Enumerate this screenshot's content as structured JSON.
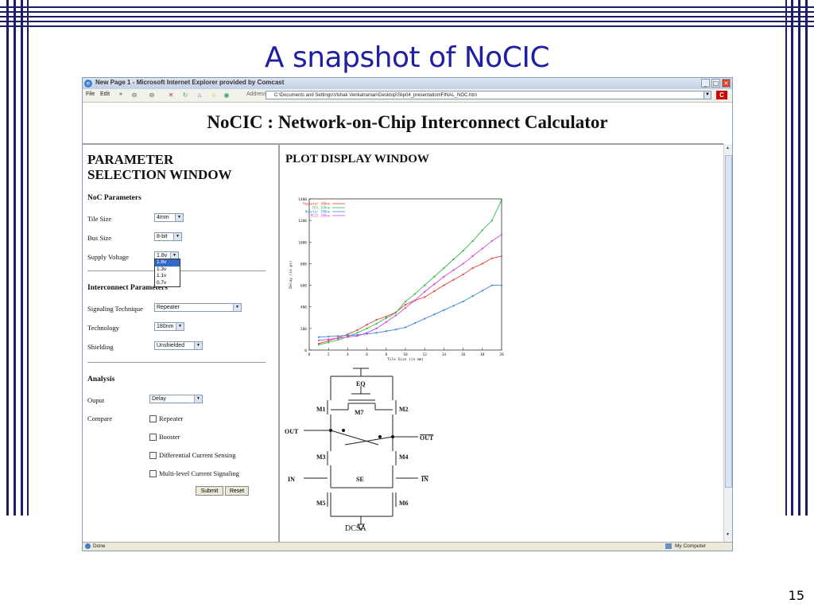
{
  "slide": {
    "title": "A snapshot of NoCIC",
    "page_number": "15"
  },
  "browser": {
    "window_title": "New Page 1 - Microsoft Internet Explorer provided by Comcast",
    "menu": {
      "file": "File",
      "edit": "Edit",
      "more": "»"
    },
    "address_label": "Address",
    "address": "C:\\Documents and Settings\\Vishak Venkatraman\\Desktop\\Slip04_presentation\\FINAL_NOC.htm",
    "go": "C",
    "status_left": "Done",
    "status_right": "My Computer"
  },
  "app": {
    "title": "NoCIC : Network-on-Chip Interconnect Calculator",
    "param_window_title_1": "PARAMETER",
    "param_window_title_2": "SELECTION WINDOW",
    "plot_window_title": "PLOT DISPLAY WINDOW",
    "noc_params": {
      "heading": "NoC Parameters",
      "tile_size_label": "Tile Size",
      "tile_size_value": "4mm",
      "bus_size_label": "Bus Size",
      "bus_size_value": "8-bit",
      "supply_voltage_label": "Supply Voltage",
      "supply_voltage_value": "1.8v",
      "supply_voltage_options": [
        "1.8v",
        "1.3v",
        "1.1v",
        "0.7v"
      ]
    },
    "interconnect_params": {
      "heading": "Interconnect Parameters",
      "signaling_label": "Signaling Technique",
      "signaling_value": "Repeater",
      "technology_label": "Technology",
      "technology_value": "180nm",
      "shielding_label": "Shielding",
      "shielding_value": "Unshielded"
    },
    "analysis": {
      "heading": "Analysis",
      "output_label": "Ouput",
      "output_value": "Delay",
      "compare_label": "Compare",
      "options": [
        "Repeater",
        "Booster",
        "Differential Current Sensing",
        "Multi-level Current Signaling"
      ],
      "submit": "Submit",
      "reset": "Reset"
    },
    "circuit": {
      "labels": {
        "eq": "EQ",
        "m1": "M1",
        "m2": "M2",
        "m7": "M7",
        "out": "OUT",
        "outb": "OUT",
        "m3": "M3",
        "m4": "M4",
        "in": "IN",
        "inb": "IN",
        "se": "SE",
        "m5": "M5",
        "m6": "M6"
      },
      "caption": "DCSA"
    }
  },
  "chart_data": {
    "type": "line",
    "xlabel": "Tile Size (in mm)",
    "ylabel": "Delay (in ps)",
    "xlim": [
      0,
      20
    ],
    "ylim": [
      0,
      1400
    ],
    "xticks": [
      "0",
      "2",
      "4",
      "6",
      "8",
      "10",
      "12",
      "14",
      "16",
      "18",
      "20"
    ],
    "yticks": [
      "0",
      "200",
      "400",
      "600",
      "800",
      "1000",
      "1200",
      "1400"
    ],
    "grid": false,
    "legend_position": "top-left",
    "x": [
      1,
      2,
      3,
      4,
      5,
      6,
      7,
      8,
      9,
      10,
      11,
      12,
      13,
      14,
      15,
      16,
      17,
      18,
      19,
      20
    ],
    "series": [
      {
        "name": "Repeater 180nm",
        "color": "#e0443c",
        "values": [
          60,
          85,
          115,
          145,
          185,
          235,
          280,
          310,
          350,
          420,
          460,
          490,
          545,
          600,
          650,
          700,
          760,
          800,
          850,
          870
        ]
      },
      {
        "name": "DCS 180nm",
        "color": "#33bb44",
        "values": [
          50,
          70,
          95,
          125,
          160,
          200,
          245,
          295,
          345,
          450,
          520,
          600,
          680,
          760,
          840,
          920,
          1010,
          1110,
          1200,
          1390
        ]
      },
      {
        "name": "Booster 180nm",
        "color": "#3a88dd",
        "values": [
          120,
          125,
          130,
          135,
          140,
          150,
          160,
          175,
          190,
          210,
          250,
          290,
          330,
          370,
          410,
          450,
          500,
          550,
          600,
          600
        ]
      },
      {
        "name": "MLCS 180nm",
        "color": "#d545d5",
        "values": [
          90,
          100,
          110,
          120,
          130,
          160,
          200,
          260,
          320,
          390,
          460,
          540,
          610,
          680,
          740,
          800,
          870,
          940,
          1010,
          1070
        ]
      }
    ]
  },
  "colors": {
    "slide_title": "#1f1fa0",
    "deco_lines": "#1c1c6c",
    "highlight": "#316ac5"
  }
}
